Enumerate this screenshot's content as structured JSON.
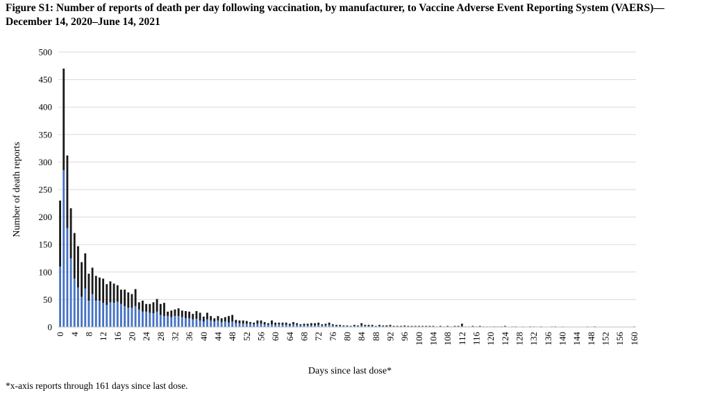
{
  "figure": {
    "title": "Figure S1: Number of reports of death per day following vaccination, by manufacturer, to Vaccine Adverse Event Reporting System (VAERS)—December 14, 2020–June 14, 2021",
    "footnote": "*x-axis reports through 161 days since last dose."
  },
  "chart_data": {
    "type": "bar",
    "stacked": true,
    "xlabel": "Days since last dose*",
    "ylabel": "Number of death reports",
    "ylim": [
      0,
      500
    ],
    "yticks": [
      0,
      50,
      100,
      150,
      200,
      250,
      300,
      350,
      400,
      450,
      500
    ],
    "xticks": [
      0,
      4,
      8,
      12,
      16,
      20,
      24,
      28,
      32,
      36,
      40,
      44,
      48,
      52,
      56,
      60,
      64,
      68,
      72,
      76,
      80,
      84,
      88,
      92,
      96,
      100,
      104,
      108,
      112,
      116,
      120,
      124,
      128,
      132,
      136,
      140,
      144,
      148,
      152,
      156,
      160
    ],
    "grid": true,
    "colors": {
      "series_a": "#4472C4",
      "series_b": "#1a1a1a",
      "grid": "#d9d9d9"
    },
    "x": [
      0,
      1,
      2,
      3,
      4,
      5,
      6,
      7,
      8,
      9,
      10,
      11,
      12,
      13,
      14,
      15,
      16,
      17,
      18,
      19,
      20,
      21,
      22,
      23,
      24,
      25,
      26,
      27,
      28,
      29,
      30,
      31,
      32,
      33,
      34,
      35,
      36,
      37,
      38,
      39,
      40,
      41,
      42,
      43,
      44,
      45,
      46,
      47,
      48,
      49,
      50,
      51,
      52,
      53,
      54,
      55,
      56,
      57,
      58,
      59,
      60,
      61,
      62,
      63,
      64,
      65,
      66,
      67,
      68,
      69,
      70,
      71,
      72,
      73,
      74,
      75,
      76,
      77,
      78,
      79,
      80,
      81,
      82,
      83,
      84,
      85,
      86,
      87,
      88,
      89,
      90,
      91,
      92,
      93,
      94,
      95,
      96,
      97,
      98,
      99,
      100,
      101,
      102,
      103,
      104,
      105,
      106,
      107,
      108,
      109,
      110,
      111,
      112,
      113,
      114,
      115,
      116,
      117,
      118,
      119,
      120,
      121,
      122,
      123,
      124,
      125,
      126,
      127,
      128,
      129,
      130,
      131,
      132,
      133,
      134,
      135,
      136,
      137,
      138,
      139,
      140,
      141,
      142,
      143,
      144,
      145,
      146,
      147,
      148,
      149,
      150,
      151,
      152,
      153,
      154,
      155,
      156,
      157,
      158,
      159,
      160
    ],
    "series": [
      {
        "values": [
          110,
          285,
          180,
          125,
          88,
          72,
          55,
          70,
          48,
          60,
          48,
          48,
          44,
          40,
          45,
          44,
          46,
          42,
          38,
          35,
          35,
          38,
          32,
          28,
          28,
          26,
          25,
          28,
          22,
          20,
          20,
          18,
          20,
          20,
          18,
          16,
          16,
          14,
          15,
          12,
          10,
          14,
          12,
          10,
          12,
          9,
          10,
          8,
          10,
          7,
          7,
          6,
          6,
          6,
          5,
          6,
          6,
          5,
          4,
          5,
          4,
          5,
          4,
          4,
          3,
          5,
          4,
          3,
          3,
          3,
          3,
          3,
          4,
          3,
          3,
          4,
          3,
          2,
          2,
          2,
          2,
          1,
          2,
          2,
          3,
          2,
          2,
          2,
          1,
          2,
          2,
          1,
          2,
          1,
          1,
          1,
          2,
          1,
          1,
          1,
          1,
          1,
          1,
          1,
          1,
          1,
          1,
          1,
          1,
          1,
          1,
          1,
          2,
          1,
          1,
          1,
          1,
          1,
          1,
          1,
          1,
          0,
          1,
          0,
          1,
          0,
          1,
          0,
          0,
          1,
          0,
          0,
          1,
          0,
          0,
          0,
          0,
          1,
          0,
          0,
          1,
          0,
          0,
          0,
          0,
          0,
          0,
          1,
          0,
          0,
          0,
          0,
          0,
          0,
          0,
          0,
          0,
          0,
          0,
          0,
          1
        ]
      },
      {
        "values": [
          120,
          185,
          132,
          91,
          83,
          75,
          63,
          64,
          49,
          48,
          45,
          42,
          44,
          38,
          38,
          35,
          30,
          26,
          30,
          28,
          25,
          31,
          13,
          20,
          14,
          16,
          20,
          23,
          20,
          24,
          8,
          12,
          12,
          14,
          12,
          13,
          12,
          10,
          14,
          14,
          9,
          12,
          8,
          6,
          8,
          7,
          8,
          12,
          12,
          6,
          5,
          6,
          5,
          3,
          3,
          6,
          6,
          4,
          3,
          7,
          4,
          3,
          4,
          4,
          3,
          4,
          3,
          2,
          3,
          3,
          4,
          4,
          4,
          2,
          3,
          4,
          2,
          2,
          2,
          1,
          1,
          1,
          2,
          1,
          4,
          2,
          2,
          2,
          1,
          2,
          1,
          2,
          2,
          1,
          1,
          1,
          1,
          1,
          1,
          1,
          1,
          1,
          1,
          1,
          1,
          0,
          1,
          0,
          1,
          0,
          1,
          1,
          4,
          0,
          0,
          1,
          0,
          1,
          0,
          0,
          0,
          1,
          0,
          1,
          1,
          0,
          0,
          1,
          0,
          0,
          0,
          1,
          0,
          0,
          1,
          0,
          0,
          0,
          1,
          0,
          0,
          0,
          0,
          0,
          0,
          0,
          0,
          0,
          0,
          1,
          0,
          0,
          0,
          0,
          0,
          0,
          0,
          0,
          0,
          0,
          0
        ]
      }
    ]
  }
}
